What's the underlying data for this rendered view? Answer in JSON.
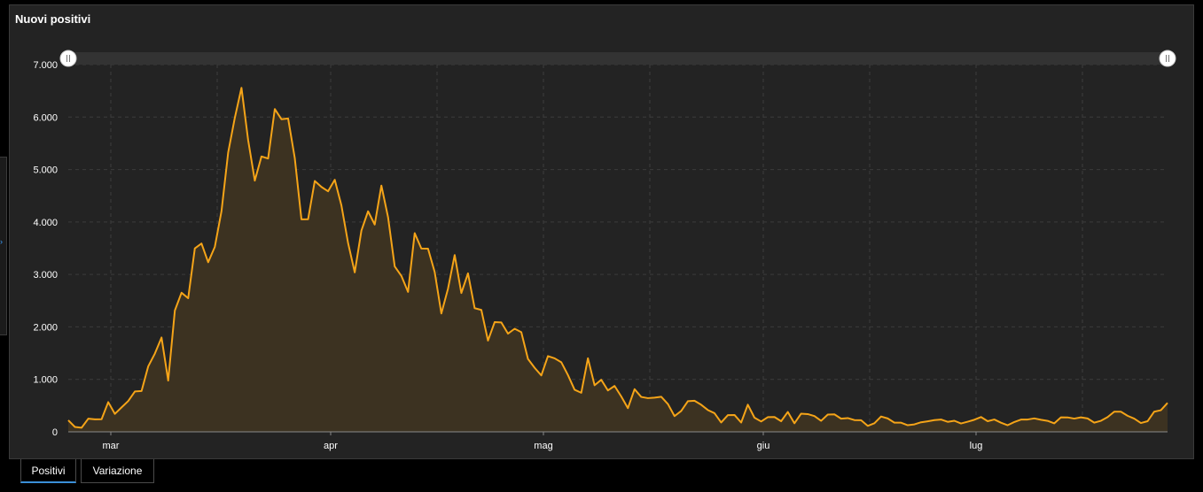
{
  "panel": {
    "title": "Nuovi positivi"
  },
  "tabs": [
    {
      "label": "Positivi",
      "active": true
    },
    {
      "label": "Variazione",
      "active": false
    }
  ],
  "colors": {
    "line": "#f5a418",
    "area_fill": "#3c3221",
    "grid": "#3c3c3c",
    "axis_text": "#ffffff",
    "slider_track": "#333333",
    "active_tab_underline": "#3a8fd8"
  },
  "chart_data": {
    "type": "area",
    "title": "Nuovi positivi",
    "xlabel": "",
    "ylabel": "",
    "ylim": [
      0,
      7000
    ],
    "yticks": [
      0,
      1000,
      2000,
      3000,
      4000,
      5000,
      6000,
      7000
    ],
    "ytick_labels": [
      "0",
      "1.000",
      "2.000",
      "3.000",
      "4.000",
      "5.000",
      "6.000",
      "7.000"
    ],
    "x_start": "2020-02-24",
    "x_end": "2020-07-28",
    "xticks": [
      {
        "date": "2020-03-01",
        "label": "mar"
      },
      {
        "date": "2020-04-01",
        "label": "apr"
      },
      {
        "date": "2020-05-01",
        "label": "mag"
      },
      {
        "date": "2020-06-01",
        "label": "giu"
      },
      {
        "date": "2020-07-01",
        "label": "lug"
      }
    ],
    "grid": true,
    "range_selector": true,
    "series": [
      {
        "values": [
          221,
          93,
          78,
          250,
          238,
          240,
          566,
          342,
          466,
          587,
          769,
          778,
          1247,
          1492,
          1797,
          977,
          2313,
          2651,
          2547,
          3497,
          3590,
          3233,
          3526,
          4207,
          5322,
          5986,
          6557,
          5560,
          4789,
          5249,
          5210,
          6153,
          5959,
          5974,
          5217,
          4050,
          4053,
          4782,
          4668,
          4585,
          4805,
          4316,
          3599,
          3039,
          3836,
          4204,
          3951,
          4694,
          4092,
          3153,
          2972,
          2667,
          3786,
          3493,
          3491,
          3047,
          2256,
          2729,
          3370,
          2646,
          3021,
          2357,
          2324,
          1739,
          2091,
          2086,
          1872,
          1965,
          1900,
          1389,
          1221,
          1075,
          1444,
          1401,
          1327,
          1083,
          802,
          744,
          1402,
          888,
          992,
          789,
          875,
          675,
          451,
          813,
          665,
          642,
          652,
          669,
          531,
          300,
          397,
          584,
          593,
          516,
          416,
          355,
          178,
          318,
          321,
          177,
          518,
          270,
          197,
          280,
          283,
          202,
          379,
          163,
          346,
          338,
          300,
          210,
          329,
          333,
          251,
          262,
          224,
          221,
          113,
          163,
          292,
          255,
          175,
          174,
          126,
          142,
          182,
          201,
          223,
          235,
          190,
          211,
          159,
          193,
          230,
          282,
          202,
          235,
          174,
          126,
          187,
          234,
          235,
          256,
          230,
          209,
          162,
          276,
          275,
          252,
          276,
          255,
          175,
          210,
          280,
          384,
          384,
          306,
          252,
          168,
          202,
          384,
          412,
          552
        ]
      }
    ]
  }
}
